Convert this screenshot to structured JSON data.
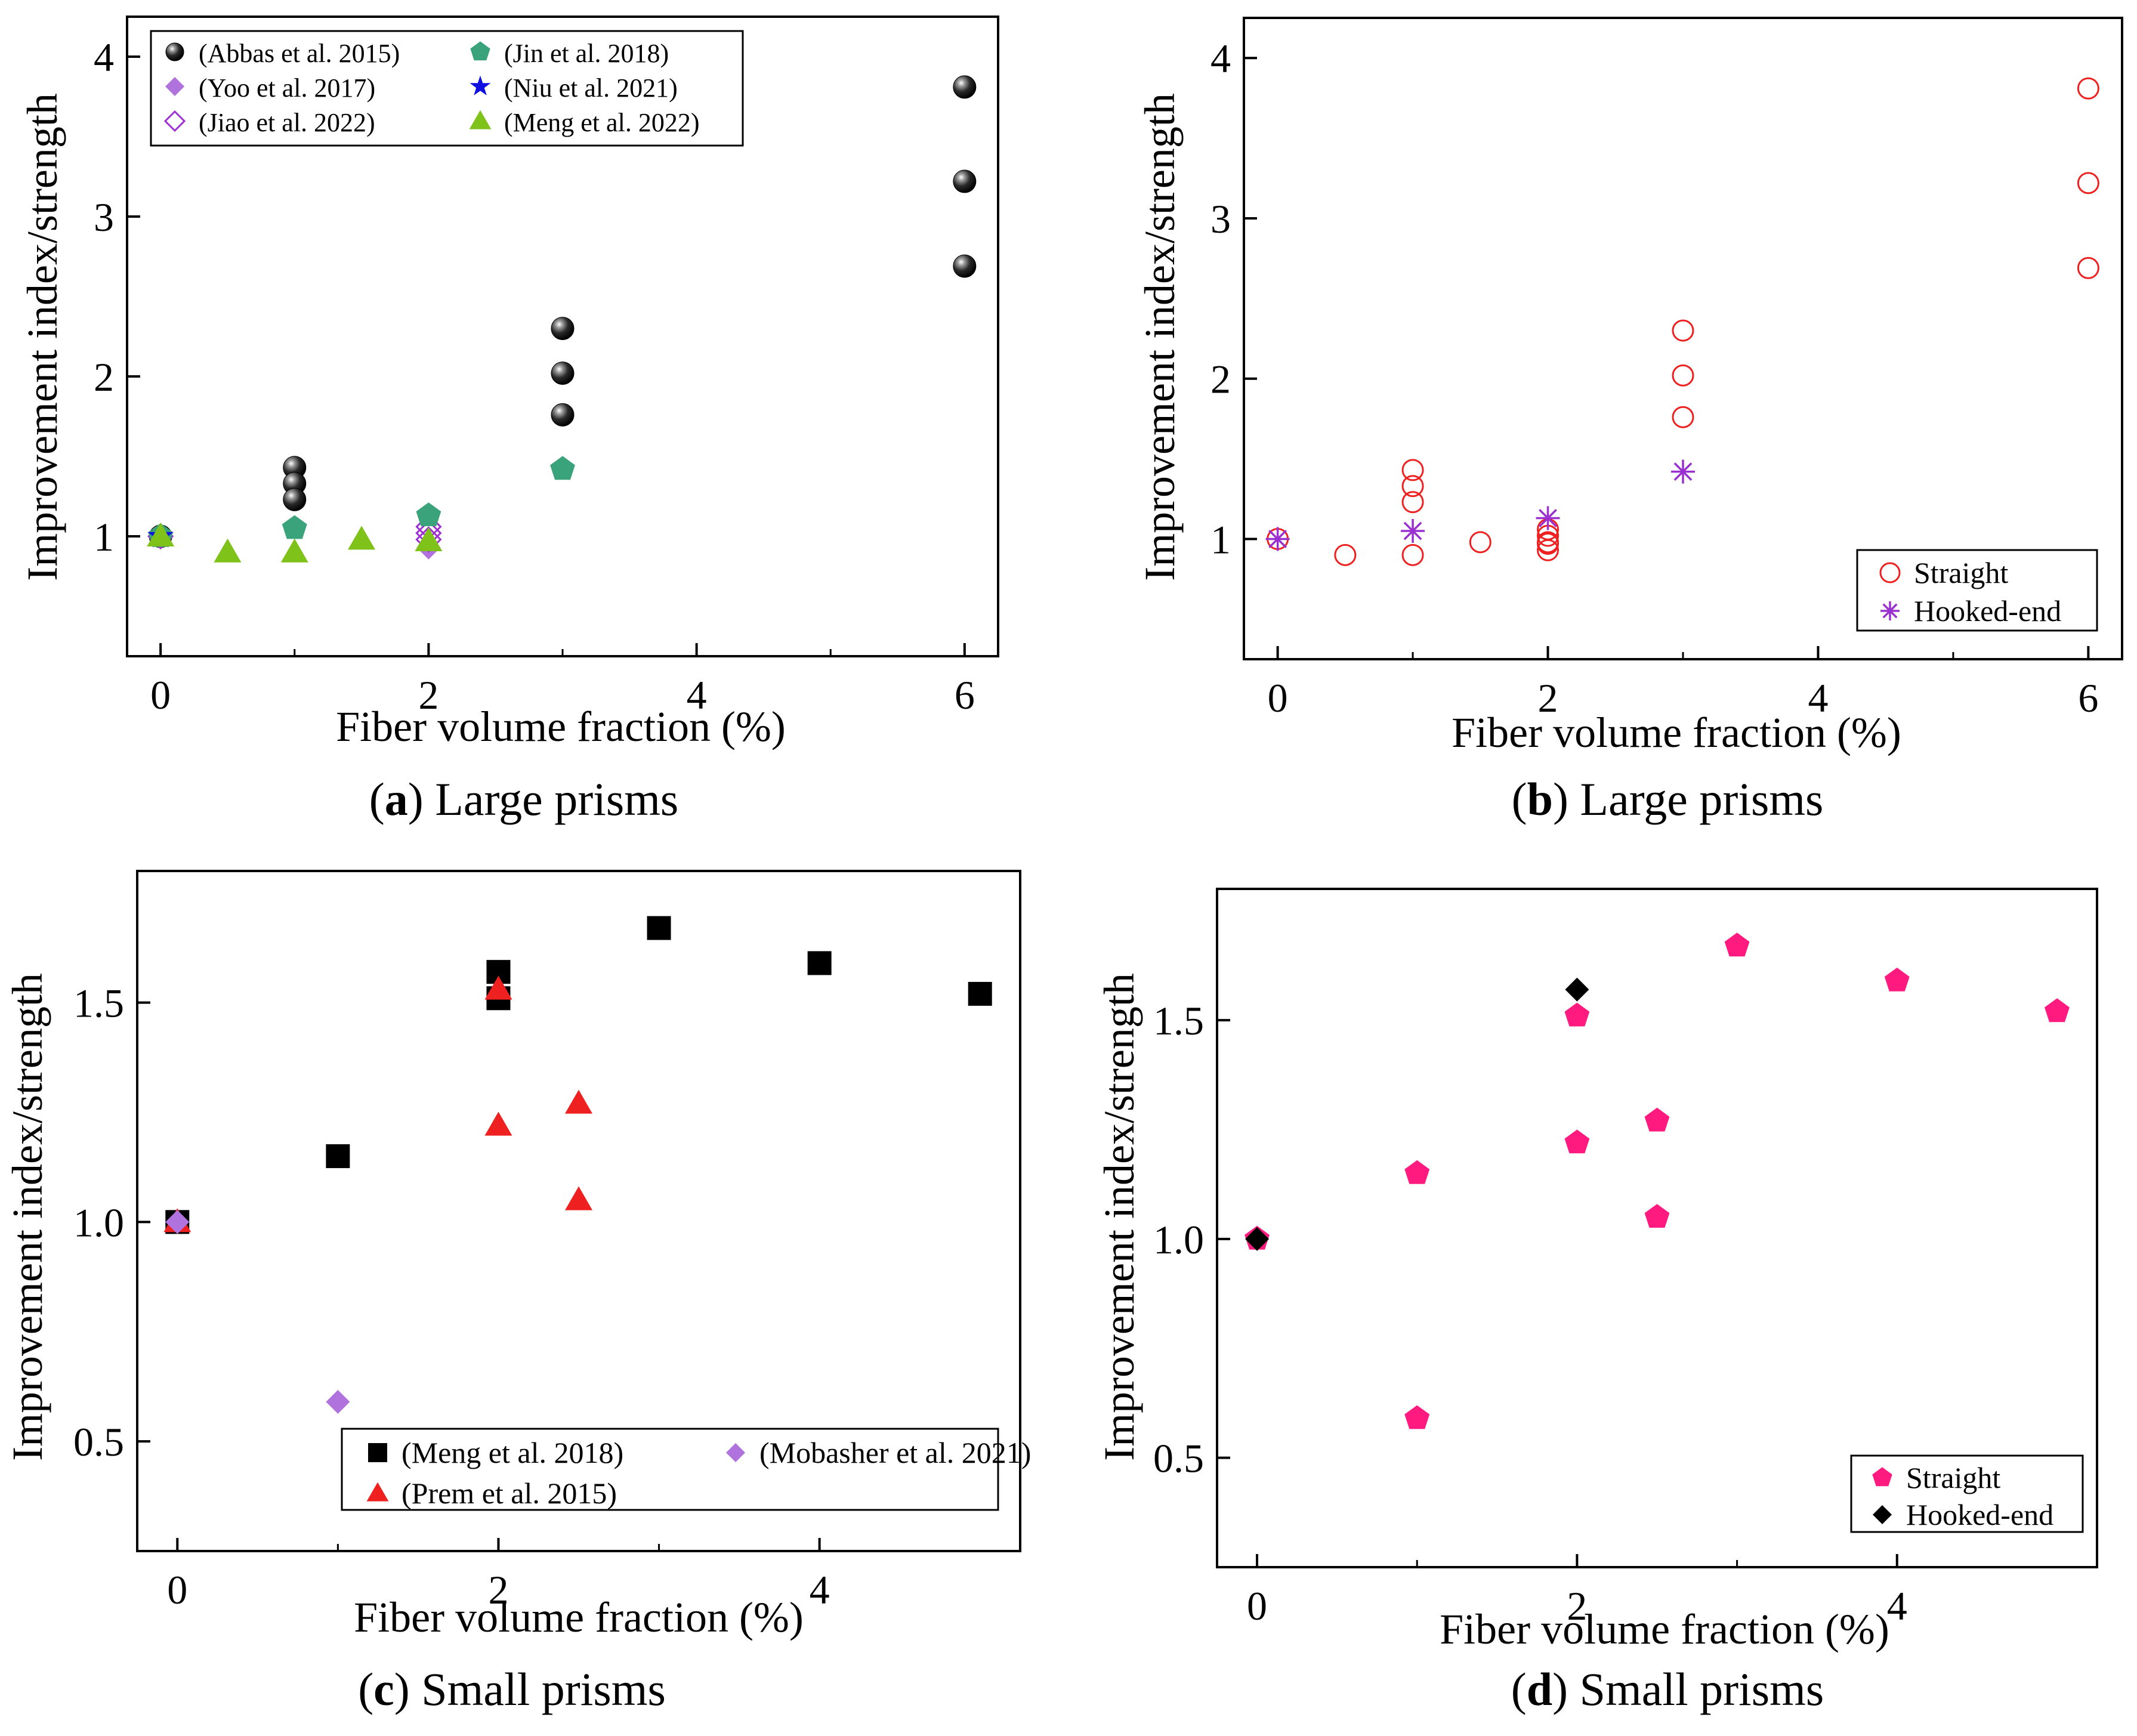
{
  "colors": {
    "black": "#000000",
    "purple_light": "#b073dd",
    "purple_outline": "#9e2fd0",
    "green": "#3aa37b",
    "blue": "#1010e0",
    "lime": "#7fc21a",
    "red": "#ee2020",
    "magenta": "#ff1a7f",
    "star_purple": "#9a30d0"
  },
  "chart_data": [
    {
      "id": "a",
      "type": "scatter",
      "caption_letter": "a",
      "caption_text": " Large prisms",
      "xlabel": "Fiber volume fraction (%)",
      "ylabel": "Improvement index/strength",
      "xlim": [
        -0.25,
        6.25
      ],
      "ylim": [
        0.25,
        4.25
      ],
      "xticks": [
        0,
        2,
        4,
        6
      ],
      "xtick_labels": [
        "0",
        "2",
        "4",
        "6"
      ],
      "yticks": [
        1,
        2,
        3,
        4
      ],
      "ytick_labels": [
        "1",
        "2",
        "3",
        "4"
      ],
      "series": [
        {
          "name": "(Abbas et al. 2015)",
          "marker": "sphere",
          "color": "#000000",
          "x": [
            0,
            1,
            1,
            1,
            3,
            3,
            3,
            6,
            6,
            6
          ],
          "y": [
            1.0,
            1.43,
            1.33,
            1.23,
            2.3,
            2.02,
            1.76,
            3.81,
            3.22,
            2.69
          ]
        },
        {
          "name": "(Yoo et al. 2017)",
          "marker": "diamond",
          "color": "#b073dd",
          "x": [
            0,
            2
          ],
          "y": [
            1.0,
            0.93
          ]
        },
        {
          "name": "(Jiao et al. 2022)",
          "marker": "diamond-open",
          "color": "#9e2fd0",
          "x": [
            0,
            2,
            2,
            2
          ],
          "y": [
            1.0,
            1.06,
            1.02,
            0.98
          ]
        },
        {
          "name": "(Jin et al. 2018)",
          "marker": "pentagon",
          "color": "#3aa37b",
          "x": [
            0,
            1,
            2,
            3
          ],
          "y": [
            1.0,
            1.05,
            1.13,
            1.42
          ]
        },
        {
          "name": "(Niu et al. 2021)",
          "marker": "star",
          "color": "#1010e0",
          "x": [
            0
          ],
          "y": [
            1.0
          ]
        },
        {
          "name": "(Meng et al. 2022)",
          "marker": "triangle",
          "color": "#7fc21a",
          "x": [
            0,
            0.5,
            1,
            1.5,
            2
          ],
          "y": [
            1.0,
            0.9,
            0.9,
            0.98,
            0.97
          ]
        }
      ],
      "legend": {
        "position": "top-left",
        "columns": 2
      }
    },
    {
      "id": "b",
      "type": "scatter",
      "caption_letter": "b",
      "caption_text": " Large prisms",
      "xlabel": "Fiber volume fraction (%)",
      "ylabel": "Improvement index/strength",
      "xlim": [
        -0.25,
        6.25
      ],
      "ylim": [
        0.25,
        4.25
      ],
      "xticks": [
        0,
        2,
        4,
        6
      ],
      "xtick_labels": [
        "0",
        "2",
        "4",
        "6"
      ],
      "yticks": [
        1,
        2,
        3,
        4
      ],
      "ytick_labels": [
        "1",
        "2",
        "3",
        "4"
      ],
      "series": [
        {
          "name": "Straight",
          "marker": "circle-open",
          "color": "#ee2020",
          "x": [
            0,
            0.5,
            1,
            1,
            1,
            1,
            1.5,
            2,
            2,
            2,
            2,
            2,
            3,
            3,
            3,
            6,
            6,
            6
          ],
          "y": [
            1.0,
            0.9,
            1.43,
            1.33,
            1.23,
            0.9,
            0.98,
            1.06,
            1.02,
            0.98,
            0.93,
            0.97,
            2.3,
            2.02,
            1.76,
            3.81,
            3.22,
            2.69
          ]
        },
        {
          "name": "Hooked-end",
          "marker": "asterisk",
          "color": "#9a30d0",
          "x": [
            0,
            1,
            2,
            3
          ],
          "y": [
            1.0,
            1.05,
            1.13,
            1.42
          ]
        }
      ],
      "legend": {
        "position": "bottom-right",
        "columns": 1
      }
    },
    {
      "id": "c",
      "type": "scatter",
      "caption_letter": "c",
      "caption_text": " Small prisms",
      "xlabel": "Fiber volume fraction (%)",
      "ylabel": "Improvement index/strength",
      "xlim": [
        -0.25,
        5.25
      ],
      "ylim": [
        0.25,
        1.8
      ],
      "xticks": [
        0,
        2,
        4
      ],
      "xtick_labels": [
        "0",
        "2",
        "4"
      ],
      "yticks": [
        0.5,
        1.0,
        1.5
      ],
      "ytick_labels": [
        "0.5",
        "1.0",
        "1.5"
      ],
      "series": [
        {
          "name": "(Meng et al. 2018)",
          "marker": "square",
          "color": "#000000",
          "x": [
            0,
            1,
            2,
            2,
            3,
            4,
            5
          ],
          "y": [
            1.0,
            1.15,
            1.57,
            1.51,
            1.67,
            1.59,
            1.52
          ]
        },
        {
          "name": "(Prem et al. 2015)",
          "marker": "triangle",
          "color": "#ee2020",
          "x": [
            0,
            2,
            2,
            2.5,
            2.5
          ],
          "y": [
            1.0,
            1.53,
            1.22,
            1.27,
            1.05
          ]
        },
        {
          "name": "(Mobasher et al. 2021)",
          "marker": "diamond",
          "color": "#b073dd",
          "x": [
            0,
            1
          ],
          "y": [
            1.0,
            0.59
          ]
        }
      ],
      "legend": {
        "position": "bottom-right",
        "columns": 2
      }
    },
    {
      "id": "d",
      "type": "scatter",
      "caption_letter": "d",
      "caption_text": " Small prisms",
      "xlabel": "Fiber volume fraction (%)",
      "ylabel": "Improvement index/strength",
      "xlim": [
        -0.25,
        5.25
      ],
      "ylim": [
        0.25,
        1.8
      ],
      "xticks": [
        0,
        2,
        4
      ],
      "xtick_labels": [
        "0",
        "2",
        "4"
      ],
      "yticks": [
        0.5,
        1.0,
        1.5
      ],
      "ytick_labels": [
        "0.5",
        "1.0",
        "1.5"
      ],
      "series": [
        {
          "name": "Straight",
          "marker": "pentagon",
          "color": "#ff1a7f",
          "x": [
            0,
            1,
            1,
            2,
            2,
            2.5,
            2.5,
            3,
            4,
            5
          ],
          "y": [
            1.0,
            1.15,
            0.59,
            1.51,
            1.22,
            1.27,
            1.05,
            1.67,
            1.59,
            1.52
          ]
        },
        {
          "name": "Hooked-end",
          "marker": "diamond",
          "color": "#000000",
          "x": [
            0,
            2
          ],
          "y": [
            1.0,
            1.57
          ]
        }
      ],
      "legend": {
        "position": "bottom-right",
        "columns": 1
      }
    }
  ]
}
